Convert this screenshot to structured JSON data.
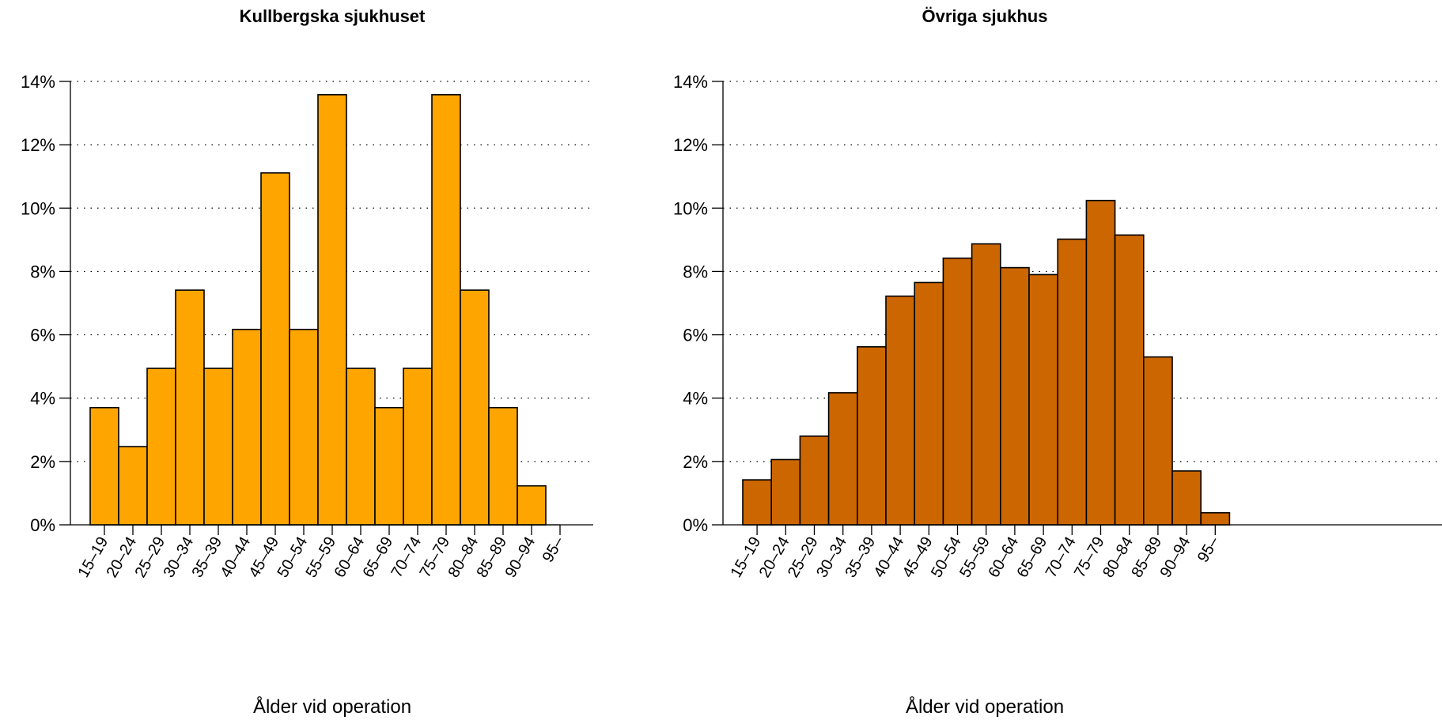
{
  "chart_data": [
    {
      "type": "bar",
      "title": "Kullbergska sjukhuset",
      "xlabel": "Ålder vid operation",
      "ylabel": "",
      "ylim": [
        0,
        14
      ],
      "y_ticks": [
        0,
        2,
        4,
        6,
        8,
        10,
        12,
        14
      ],
      "y_tick_labels": [
        "0%",
        "2%",
        "4%",
        "6%",
        "8%",
        "10%",
        "12%",
        "14%"
      ],
      "grid": "horizontal dotted",
      "bar_color": "#FFA500",
      "categories": [
        "15–19",
        "20–24",
        "25–29",
        "30–34",
        "35–39",
        "40–44",
        "45–49",
        "50–54",
        "55–59",
        "60–64",
        "65–69",
        "70–74",
        "75–79",
        "80–84",
        "85–89",
        "90–94",
        "95–"
      ],
      "values": [
        3.7,
        2.47,
        4.94,
        7.41,
        4.94,
        6.17,
        11.11,
        6.17,
        13.58,
        4.94,
        3.7,
        4.94,
        13.58,
        7.41,
        3.7,
        1.23,
        0.0
      ]
    },
    {
      "type": "bar",
      "title": "Övriga sjukhus",
      "xlabel": "Ålder vid operation",
      "ylabel": "",
      "ylim": [
        0,
        14
      ],
      "y_ticks": [
        0,
        2,
        4,
        6,
        8,
        10,
        12,
        14
      ],
      "y_tick_labels": [
        "0%",
        "2%",
        "4%",
        "6%",
        "8%",
        "10%",
        "12%",
        "14%"
      ],
      "grid": "horizontal dotted",
      "bar_color": "#CC6600",
      "categories": [
        "15–19",
        "20–24",
        "25–29",
        "30–34",
        "35–39",
        "40–44",
        "45–49",
        "50–54",
        "55–59",
        "60–64",
        "65–69",
        "70–74",
        "75–79",
        "80–84",
        "85–89",
        "90–94",
        "95–"
      ],
      "values": [
        1.42,
        2.06,
        2.8,
        4.17,
        5.62,
        7.22,
        7.65,
        8.42,
        8.87,
        8.12,
        7.9,
        9.02,
        10.24,
        9.15,
        5.3,
        1.7,
        0.38
      ]
    }
  ]
}
